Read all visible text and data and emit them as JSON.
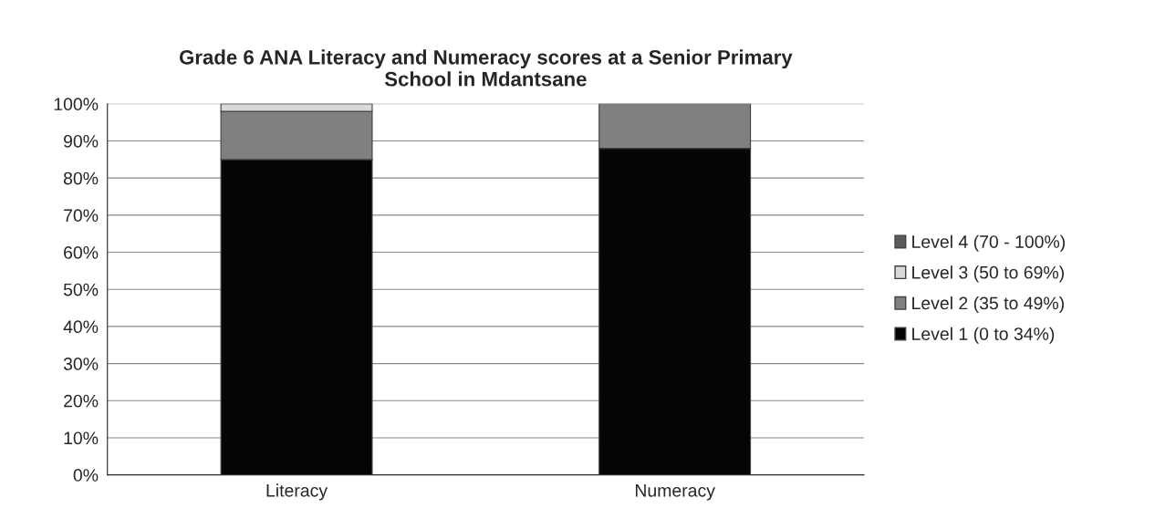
{
  "chart_data": {
    "type": "bar",
    "stacked": true,
    "title": "Grade 6 ANA Literacy and Numeracy scores at a Senior Primary\nSchool in Mdantsane",
    "categories": [
      "Literacy",
      "Numeracy"
    ],
    "series": [
      {
        "name": "Level 1 (0 to 34%)",
        "color": "#050505",
        "values": [
          85,
          88
        ]
      },
      {
        "name": "Level 2 (35 to 49%)",
        "color": "#808080",
        "values": [
          13,
          12
        ]
      },
      {
        "name": "Level 3 (50 to 69%)",
        "color": "#d9d9d9",
        "values": [
          2,
          0
        ]
      },
      {
        "name": "Level 4 (70 - 100%)",
        "color": "#5a5a5a",
        "values": [
          0,
          0
        ]
      }
    ],
    "ylim": [
      0,
      100
    ],
    "yticks": [
      {
        "value": 0,
        "label": "0%"
      },
      {
        "value": 10,
        "label": "10%"
      },
      {
        "value": 20,
        "label": "20%"
      },
      {
        "value": 30,
        "label": "30%"
      },
      {
        "value": 40,
        "label": "40%"
      },
      {
        "value": 50,
        "label": "50%"
      },
      {
        "value": 60,
        "label": "60%"
      },
      {
        "value": 70,
        "label": "70%"
      },
      {
        "value": 80,
        "label": "80%"
      },
      {
        "value": 90,
        "label": "90%"
      },
      {
        "value": 100,
        "label": "100%"
      }
    ],
    "grid": "y",
    "legend": "right"
  }
}
